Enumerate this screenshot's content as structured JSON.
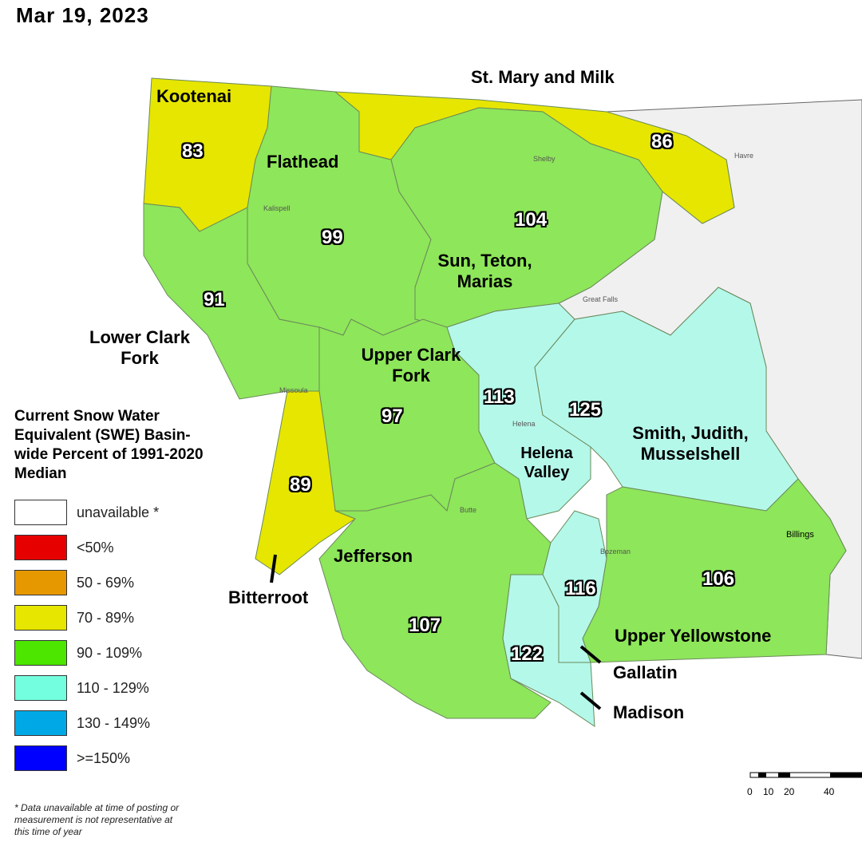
{
  "date": "Mar 19, 2023",
  "basins": [
    {
      "name": "Kootenai",
      "value": 83
    },
    {
      "name": "Flathead",
      "value": 99
    },
    {
      "name": "St. Mary and Milk",
      "value": 86
    },
    {
      "name": "Sun, Teton, Marias",
      "value": 104
    },
    {
      "name": "Lower Clark Fork",
      "value": 91
    },
    {
      "name": "Upper Clark Fork",
      "value": 97
    },
    {
      "name": "Bitterroot",
      "value": 89
    },
    {
      "name": "Helena Valley",
      "value": 113
    },
    {
      "name": "Smith, Judith, Musselshell",
      "value": 125
    },
    {
      "name": "Jefferson",
      "value": 107
    },
    {
      "name": "Gallatin",
      "value": 116
    },
    {
      "name": "Madison",
      "value": 122
    },
    {
      "name": "Upper Yellowstone",
      "value": 106
    }
  ],
  "cities": [
    "Kalispell",
    "Shelby",
    "Havre",
    "Great Falls",
    "Missoula",
    "Helena",
    "Butte",
    "Bozeman",
    "Billings"
  ],
  "legend": {
    "title": "Current Snow Water Equivalent (SWE) Basin-wide Percent of 1991-2020 Median",
    "items": [
      {
        "label": "unavailable *",
        "color": "#ffffff"
      },
      {
        "label": "<50%",
        "color": "#e60000"
      },
      {
        "label": "50 - 69%",
        "color": "#e69800"
      },
      {
        "label": "70 - 89%",
        "color": "#e6e600"
      },
      {
        "label": "90 - 109%",
        "color": "#4ce600"
      },
      {
        "label": "110 - 129%",
        "color": "#73ffdf"
      },
      {
        "label": "130 - 149%",
        "color": "#00a9e6"
      },
      {
        "label": ">=150%",
        "color": "#0000ff"
      }
    ]
  },
  "footnote": "* Data unavailable at time of posting or measurement is not representative at this time of year",
  "scale_bar": {
    "labels": [
      "0",
      "10",
      "20",
      "40"
    ]
  }
}
